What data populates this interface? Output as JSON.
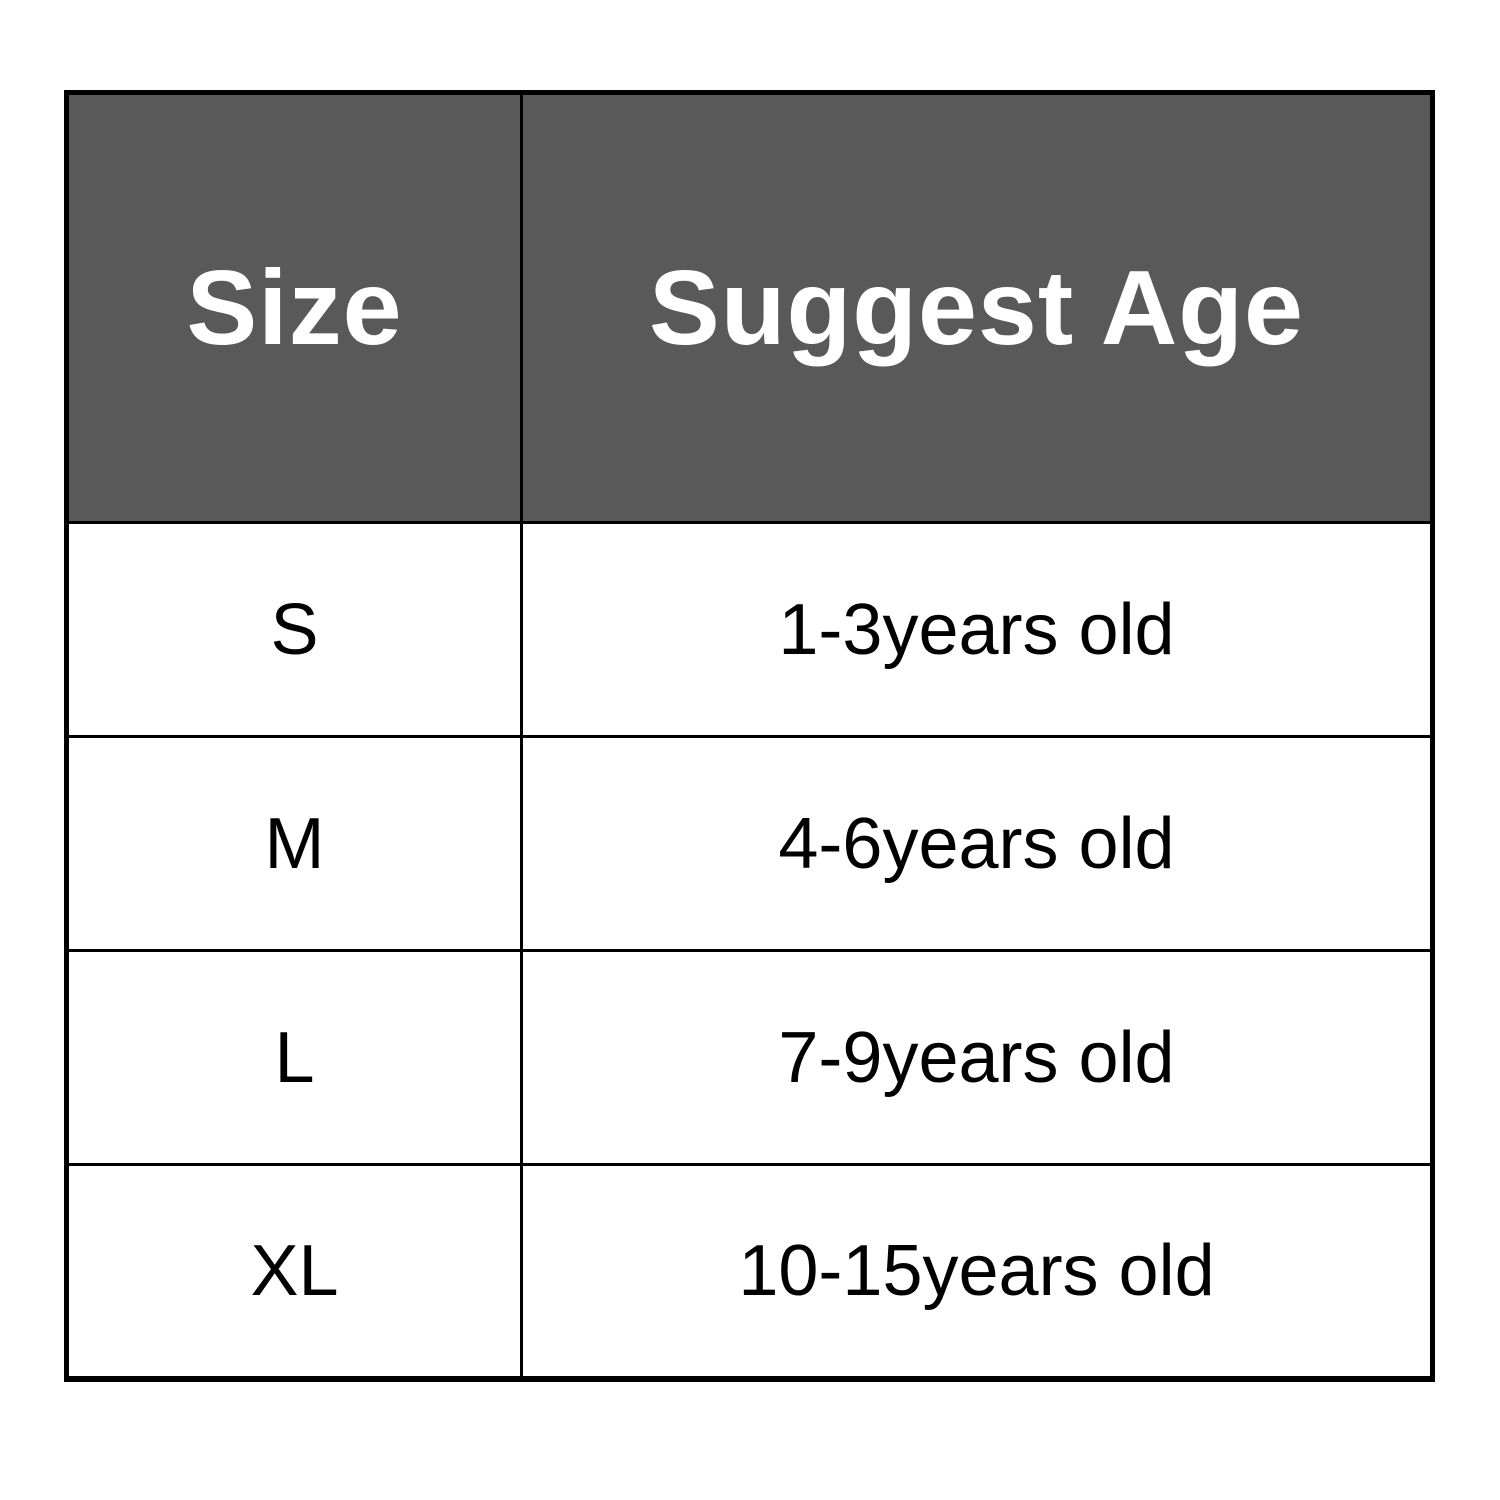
{
  "table": {
    "columns": [
      {
        "label": "Size"
      },
      {
        "label": "Suggest Age"
      }
    ],
    "rows": [
      {
        "size": "S",
        "age": "1-3years old"
      },
      {
        "size": "M",
        "age": "4-6years old"
      },
      {
        "size": "L",
        "age": "7-9years old"
      },
      {
        "size": "XL",
        "age": "10-15years old"
      }
    ],
    "colors": {
      "header_bg": "#595959",
      "header_text": "#ffffff",
      "body_bg": "#ffffff",
      "body_text": "#000000",
      "border": "#000000",
      "page_bg": "#ffffff"
    }
  }
}
